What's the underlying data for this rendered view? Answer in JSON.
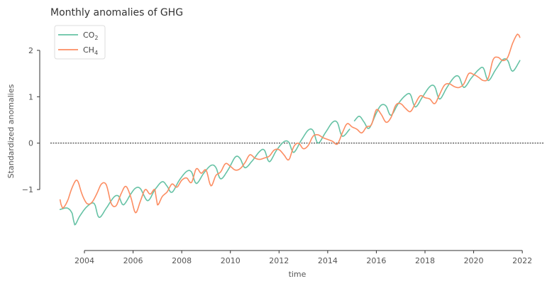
{
  "chart_data": {
    "type": "line",
    "title": "Monthly anomalies of GHG",
    "xlabel": "time",
    "ylabel": "Standardized anomalies",
    "xlim": [
      2002.6,
      2022.9
    ],
    "ylim": [
      -2.1,
      2.55
    ],
    "x_ticks": [
      2004,
      2006,
      2008,
      2010,
      2012,
      2014,
      2016,
      2018,
      2020,
      2022
    ],
    "y_ticks": [
      -1,
      0,
      1,
      2
    ],
    "y_tick_labels": [
      "−1",
      "0",
      "1",
      "2"
    ],
    "grid": false,
    "reference_line": {
      "y": 0,
      "style": "dotted",
      "color": "#000000"
    },
    "legend": {
      "position": "top-left"
    },
    "series": [
      {
        "name_base": "CO",
        "name_sub": "2",
        "color": "#66c2a5",
        "knots": [
          [
            2003.0,
            -1.43
          ],
          [
            2003.3,
            -1.4
          ],
          [
            2003.5,
            -1.52
          ],
          [
            2003.6,
            -1.76
          ],
          [
            2003.8,
            -1.58
          ],
          [
            2004.1,
            -1.37
          ],
          [
            2004.4,
            -1.3
          ],
          [
            2004.6,
            -1.6
          ],
          [
            2004.9,
            -1.4
          ],
          [
            2005.2,
            -1.17
          ],
          [
            2005.4,
            -1.14
          ],
          [
            2005.6,
            -1.33
          ],
          [
            2005.9,
            -1.1
          ],
          [
            2006.1,
            -0.97
          ],
          [
            2006.3,
            -0.98
          ],
          [
            2006.6,
            -1.24
          ],
          [
            2006.9,
            -1.0
          ],
          [
            2007.2,
            -0.83
          ],
          [
            2007.4,
            -0.93
          ],
          [
            2007.6,
            -1.06
          ],
          [
            2007.9,
            -0.8
          ],
          [
            2008.2,
            -0.61
          ],
          [
            2008.4,
            -0.62
          ],
          [
            2008.6,
            -0.87
          ],
          [
            2008.9,
            -0.65
          ],
          [
            2009.2,
            -0.48
          ],
          [
            2009.4,
            -0.52
          ],
          [
            2009.6,
            -0.77
          ],
          [
            2009.9,
            -0.58
          ],
          [
            2010.2,
            -0.3
          ],
          [
            2010.4,
            -0.33
          ],
          [
            2010.6,
            -0.53
          ],
          [
            2010.9,
            -0.38
          ],
          [
            2011.2,
            -0.18
          ],
          [
            2011.4,
            -0.15
          ],
          [
            2011.6,
            -0.4
          ],
          [
            2011.9,
            -0.15
          ],
          [
            2012.2,
            0.03
          ],
          [
            2012.4,
            0.02
          ],
          [
            2012.6,
            -0.2
          ],
          [
            2012.9,
            0.05
          ],
          [
            2013.2,
            0.28
          ],
          [
            2013.4,
            0.27
          ],
          [
            2013.6,
            0.0
          ],
          [
            2013.9,
            0.22
          ],
          [
            2014.2,
            0.45
          ],
          [
            2014.4,
            0.44
          ],
          [
            2014.6,
            0.15
          ],
          [
            2014.9,
            0.3
          ]
        ],
        "knots_segment2": [
          [
            2015.1,
            0.48
          ],
          [
            2015.3,
            0.58
          ],
          [
            2015.5,
            0.45
          ],
          [
            2015.7,
            0.32
          ],
          [
            2016.0,
            0.65
          ],
          [
            2016.2,
            0.82
          ],
          [
            2016.4,
            0.8
          ],
          [
            2016.6,
            0.6
          ],
          [
            2016.9,
            0.85
          ],
          [
            2017.2,
            1.03
          ],
          [
            2017.4,
            1.05
          ],
          [
            2017.6,
            0.78
          ],
          [
            2017.9,
            1.0
          ],
          [
            2018.2,
            1.22
          ],
          [
            2018.4,
            1.22
          ],
          [
            2018.6,
            0.95
          ],
          [
            2018.9,
            1.2
          ],
          [
            2019.2,
            1.42
          ],
          [
            2019.4,
            1.43
          ],
          [
            2019.6,
            1.2
          ],
          [
            2019.9,
            1.4
          ],
          [
            2020.2,
            1.58
          ],
          [
            2020.4,
            1.62
          ],
          [
            2020.6,
            1.35
          ],
          [
            2020.9,
            1.58
          ],
          [
            2021.2,
            1.8
          ],
          [
            2021.4,
            1.78
          ],
          [
            2021.6,
            1.55
          ],
          [
            2021.9,
            1.78
          ]
        ]
      },
      {
        "name_base": "CH",
        "name_sub": "4",
        "color": "#fc8d62",
        "knots": [
          [
            2003.0,
            -1.22
          ],
          [
            2003.1,
            -1.4
          ],
          [
            2003.3,
            -1.25
          ],
          [
            2003.5,
            -0.95
          ],
          [
            2003.7,
            -0.8
          ],
          [
            2003.9,
            -1.1
          ],
          [
            2004.1,
            -1.3
          ],
          [
            2004.3,
            -1.28
          ],
          [
            2004.5,
            -1.1
          ],
          [
            2004.7,
            -0.88
          ],
          [
            2004.9,
            -0.9
          ],
          [
            2005.1,
            -1.3
          ],
          [
            2005.3,
            -1.35
          ],
          [
            2005.5,
            -1.1
          ],
          [
            2005.7,
            -0.93
          ],
          [
            2005.9,
            -1.15
          ],
          [
            2006.1,
            -1.5
          ],
          [
            2006.3,
            -1.25
          ],
          [
            2006.5,
            -1.0
          ],
          [
            2006.7,
            -1.1
          ],
          [
            2006.9,
            -1.0
          ],
          [
            2007.0,
            -1.33
          ],
          [
            2007.2,
            -1.15
          ],
          [
            2007.4,
            -1.05
          ],
          [
            2007.6,
            -0.88
          ],
          [
            2007.8,
            -0.95
          ],
          [
            2008.0,
            -0.8
          ],
          [
            2008.2,
            -0.75
          ],
          [
            2008.4,
            -0.85
          ],
          [
            2008.6,
            -0.55
          ],
          [
            2008.8,
            -0.65
          ],
          [
            2009.0,
            -0.58
          ],
          [
            2009.2,
            -0.92
          ],
          [
            2009.4,
            -0.7
          ],
          [
            2009.6,
            -0.62
          ],
          [
            2009.8,
            -0.44
          ],
          [
            2010.0,
            -0.5
          ],
          [
            2010.2,
            -0.58
          ],
          [
            2010.4,
            -0.55
          ],
          [
            2010.6,
            -0.42
          ],
          [
            2010.8,
            -0.25
          ],
          [
            2011.0,
            -0.32
          ],
          [
            2011.2,
            -0.35
          ],
          [
            2011.4,
            -0.32
          ],
          [
            2011.6,
            -0.28
          ],
          [
            2011.8,
            -0.15
          ],
          [
            2012.0,
            -0.14
          ],
          [
            2012.2,
            -0.25
          ],
          [
            2012.4,
            -0.36
          ],
          [
            2012.6,
            -0.08
          ],
          [
            2012.8,
            0.0
          ],
          [
            2013.0,
            -0.12
          ],
          [
            2013.2,
            -0.05
          ],
          [
            2013.4,
            0.15
          ],
          [
            2013.6,
            0.18
          ],
          [
            2013.8,
            0.12
          ],
          [
            2014.0,
            0.08
          ],
          [
            2014.2,
            0.04
          ],
          [
            2014.4,
            -0.02
          ],
          [
            2014.6,
            0.22
          ],
          [
            2014.8,
            0.42
          ],
          [
            2015.0,
            0.35
          ],
          [
            2015.2,
            0.3
          ],
          [
            2015.4,
            0.22
          ],
          [
            2015.6,
            0.35
          ],
          [
            2015.8,
            0.4
          ],
          [
            2016.0,
            0.72
          ],
          [
            2016.2,
            0.62
          ],
          [
            2016.4,
            0.45
          ],
          [
            2016.6,
            0.55
          ],
          [
            2016.8,
            0.82
          ],
          [
            2017.0,
            0.85
          ],
          [
            2017.2,
            0.75
          ],
          [
            2017.4,
            0.68
          ],
          [
            2017.6,
            0.85
          ],
          [
            2017.8,
            1.02
          ],
          [
            2018.0,
            0.98
          ],
          [
            2018.2,
            0.95
          ],
          [
            2018.4,
            0.85
          ],
          [
            2018.6,
            1.05
          ],
          [
            2018.8,
            1.25
          ],
          [
            2019.0,
            1.28
          ],
          [
            2019.2,
            1.22
          ],
          [
            2019.4,
            1.2
          ],
          [
            2019.6,
            1.28
          ],
          [
            2019.8,
            1.5
          ],
          [
            2020.0,
            1.48
          ],
          [
            2020.2,
            1.42
          ],
          [
            2020.4,
            1.35
          ],
          [
            2020.6,
            1.4
          ],
          [
            2020.8,
            1.8
          ],
          [
            2021.0,
            1.85
          ],
          [
            2021.2,
            1.78
          ],
          [
            2021.4,
            1.85
          ],
          [
            2021.6,
            2.15
          ],
          [
            2021.8,
            2.35
          ],
          [
            2021.9,
            2.28
          ]
        ]
      }
    ]
  }
}
